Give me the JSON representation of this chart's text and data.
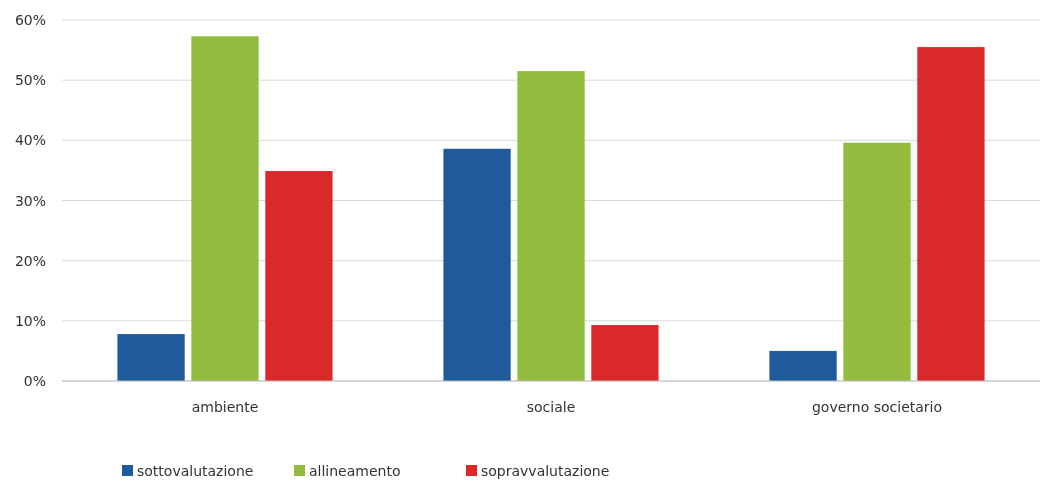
{
  "chart_data": {
    "type": "bar",
    "categories": [
      "ambiente",
      "sociale",
      "governo societario"
    ],
    "series": [
      {
        "name": "sottovalutazione",
        "color": "#1f5a9a",
        "values": [
          7.8,
          38.6,
          5.0
        ]
      },
      {
        "name": "allineamento",
        "color": "#93bb3e",
        "values": [
          57.3,
          51.5,
          39.6
        ]
      },
      {
        "name": "sopravvalutazione",
        "color": "#d9292b",
        "values": [
          34.9,
          9.3,
          55.5
        ]
      }
    ],
    "ylim": [
      0,
      60
    ],
    "yticks": [
      {
        "value": 0,
        "label": "0%"
      },
      {
        "value": 10,
        "label": "10%"
      },
      {
        "value": 20,
        "label": "20%"
      },
      {
        "value": 30,
        "label": "30%"
      },
      {
        "value": 40,
        "label": "40%"
      },
      {
        "value": 50,
        "label": "50%"
      },
      {
        "value": 60,
        "label": "60%"
      }
    ],
    "grid": "y",
    "legend": "bottom left"
  }
}
